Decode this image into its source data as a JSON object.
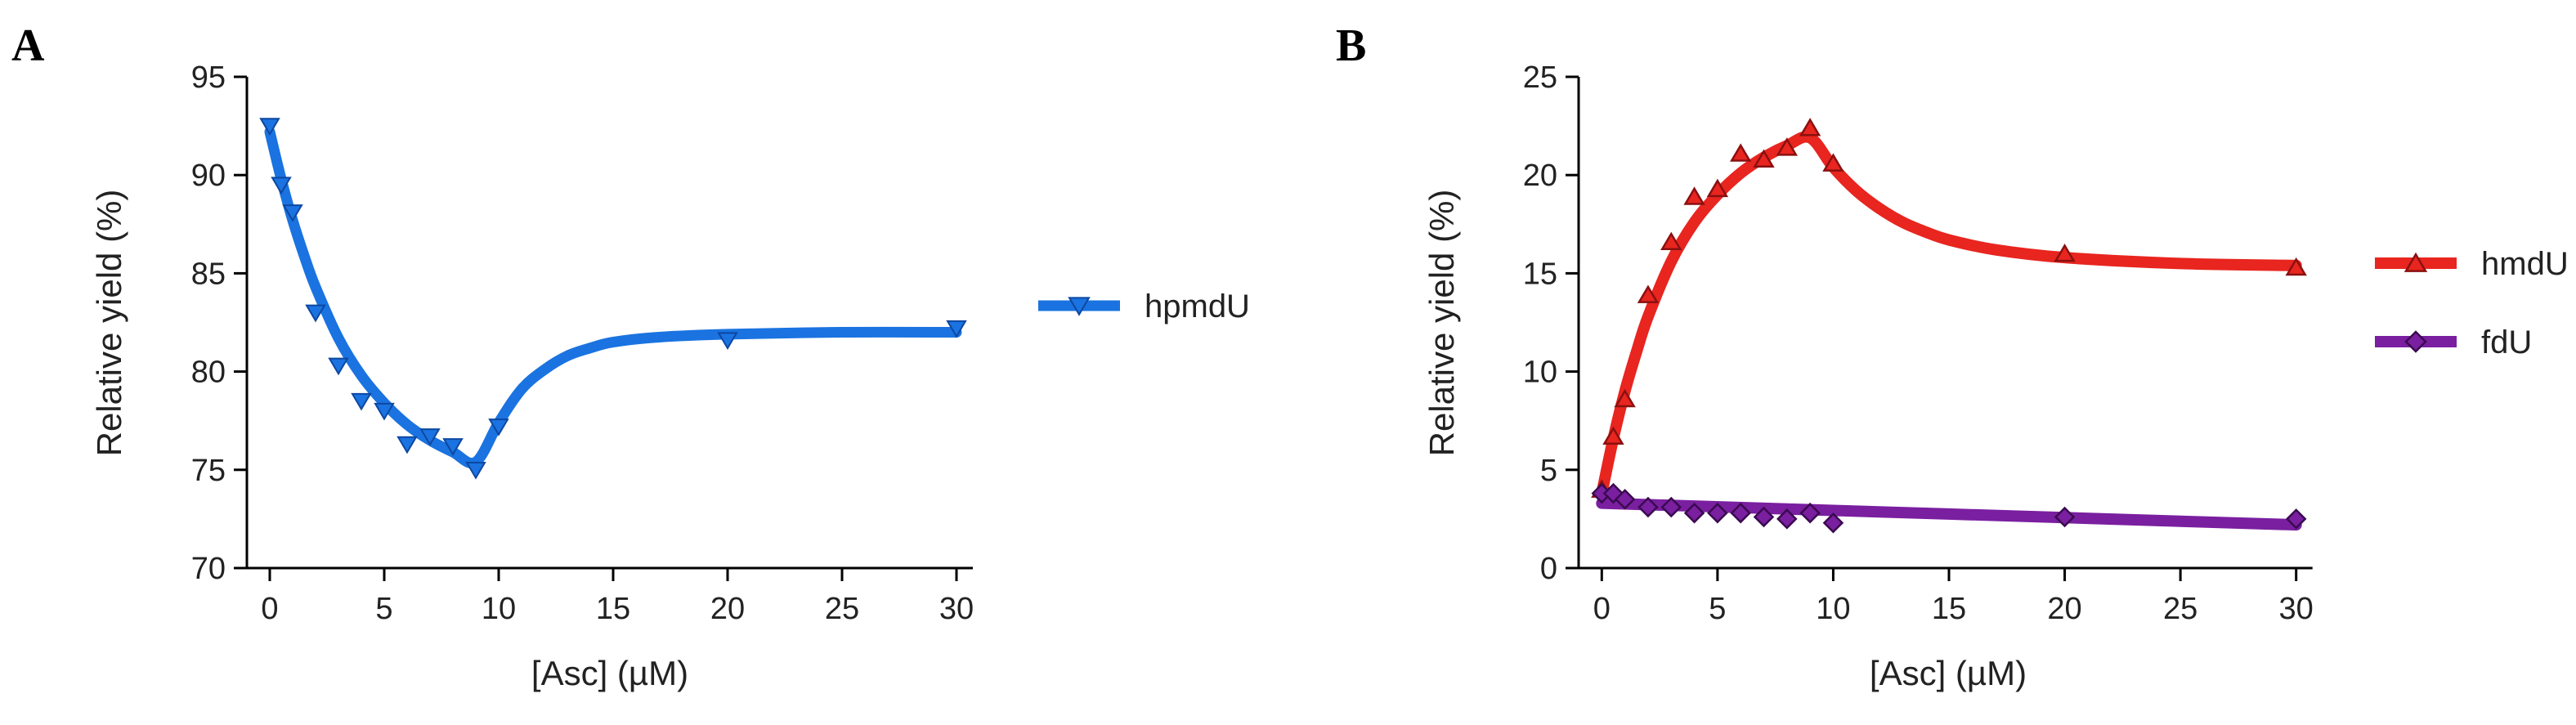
{
  "chart_data": [
    {
      "panel_label": "A",
      "type": "scatter",
      "title": "",
      "xlabel": "[Asc] (µM)",
      "ylabel": "Relative yield (%)",
      "xlim": [
        -1,
        31
      ],
      "ylim": [
        70,
        95
      ],
      "xticks": [
        0,
        5,
        10,
        15,
        20,
        25,
        30
      ],
      "yticks": [
        70,
        75,
        80,
        85,
        90,
        95
      ],
      "grid": false,
      "legend_position": "right",
      "series": [
        {
          "name": "hpmdU",
          "color": "#1a73e0",
          "marker": "triangle-down",
          "points": [
            [
              0,
              92.5
            ],
            [
              0.5,
              89.5
            ],
            [
              1,
              88.1
            ],
            [
              2,
              83.0
            ],
            [
              3,
              80.3
            ],
            [
              4,
              78.5
            ],
            [
              5,
              78.0
            ],
            [
              6,
              76.3
            ],
            [
              7,
              76.7
            ],
            [
              8,
              76.2
            ],
            [
              9,
              75.0
            ],
            [
              10,
              77.2
            ],
            [
              20,
              81.6
            ],
            [
              30,
              82.2
            ]
          ],
          "fit": [
            [
              0,
              92.2
            ],
            [
              0.5,
              89.8
            ],
            [
              1,
              87.7
            ],
            [
              1.5,
              85.9
            ],
            [
              2,
              84.3
            ],
            [
              3,
              81.7
            ],
            [
              4,
              79.8
            ],
            [
              5,
              78.4
            ],
            [
              6,
              77.3
            ],
            [
              7,
              76.5
            ],
            [
              8,
              75.9
            ],
            [
              9,
              75.4
            ],
            [
              10,
              77.4
            ],
            [
              11,
              79.1
            ],
            [
              12,
              80.1
            ],
            [
              13,
              80.8
            ],
            [
              14,
              81.2
            ],
            [
              15,
              81.5
            ],
            [
              17,
              81.75
            ],
            [
              20,
              81.9
            ],
            [
              25,
              82.0
            ],
            [
              30,
              82.0
            ]
          ]
        }
      ]
    },
    {
      "panel_label": "B",
      "type": "scatter",
      "title": "",
      "xlabel": "[Asc] (µM)",
      "ylabel": "Relative yield (%)",
      "xlim": [
        -1,
        31
      ],
      "ylim": [
        0,
        25
      ],
      "xticks": [
        0,
        5,
        10,
        15,
        20,
        25,
        30
      ],
      "yticks": [
        0,
        5,
        10,
        15,
        20,
        25
      ],
      "grid": false,
      "legend_position": "right",
      "series": [
        {
          "name": "hmdU",
          "color": "#e8251f",
          "marker": "triangle-up",
          "points": [
            [
              0,
              4.0
            ],
            [
              0.5,
              6.7
            ],
            [
              1,
              8.6
            ],
            [
              2,
              13.9
            ],
            [
              3,
              16.6
            ],
            [
              4,
              18.9
            ],
            [
              5,
              19.3
            ],
            [
              6,
              21.1
            ],
            [
              7,
              20.8
            ],
            [
              8,
              21.4
            ],
            [
              9,
              22.4
            ],
            [
              10,
              20.6
            ],
            [
              20,
              16.0
            ],
            [
              30,
              15.3
            ]
          ],
          "fit": [
            [
              0,
              3.8
            ],
            [
              0.5,
              6.6
            ],
            [
              1,
              9.0
            ],
            [
              1.5,
              11.0
            ],
            [
              2,
              12.8
            ],
            [
              3,
              15.6
            ],
            [
              4,
              17.6
            ],
            [
              5,
              19.0
            ],
            [
              6,
              20.1
            ],
            [
              7,
              20.9
            ],
            [
              8,
              21.5
            ],
            [
              9,
              21.9
            ],
            [
              10,
              20.4
            ],
            [
              11,
              19.2
            ],
            [
              12,
              18.3
            ],
            [
              13,
              17.6
            ],
            [
              14,
              17.1
            ],
            [
              15,
              16.7
            ],
            [
              17,
              16.2
            ],
            [
              20,
              15.8
            ],
            [
              25,
              15.5
            ],
            [
              30,
              15.4
            ]
          ]
        },
        {
          "name": "fdU",
          "color": "#7a1fa0",
          "marker": "diamond",
          "points": [
            [
              0,
              3.8
            ],
            [
              0.5,
              3.8
            ],
            [
              1,
              3.5
            ],
            [
              2,
              3.1
            ],
            [
              3,
              3.1
            ],
            [
              4,
              2.8
            ],
            [
              5,
              2.8
            ],
            [
              6,
              2.8
            ],
            [
              7,
              2.6
            ],
            [
              8,
              2.5
            ],
            [
              9,
              2.8
            ],
            [
              10,
              2.3
            ],
            [
              20,
              2.6
            ],
            [
              30,
              2.5
            ]
          ],
          "fit": [
            [
              0,
              3.3
            ],
            [
              30,
              2.2
            ]
          ]
        }
      ]
    }
  ]
}
